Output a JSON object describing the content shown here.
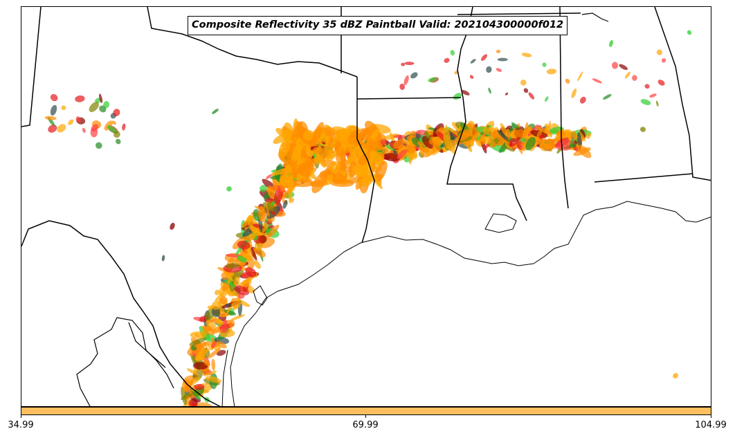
{
  "title": "Composite Reflectivity 35 dBZ Paintball Valid: 202104300000f012",
  "colorbar": {
    "color": "#ffbf5e",
    "ticks": [
      "34.99",
      "69.99",
      "104.99"
    ]
  },
  "paintball_colors": [
    "#ff8c00",
    "#ffa500",
    "#e41a1c",
    "#8b0000",
    "#228b22",
    "#32cd32",
    "#808000",
    "#2f4f4f",
    "#ff4040"
  ]
}
